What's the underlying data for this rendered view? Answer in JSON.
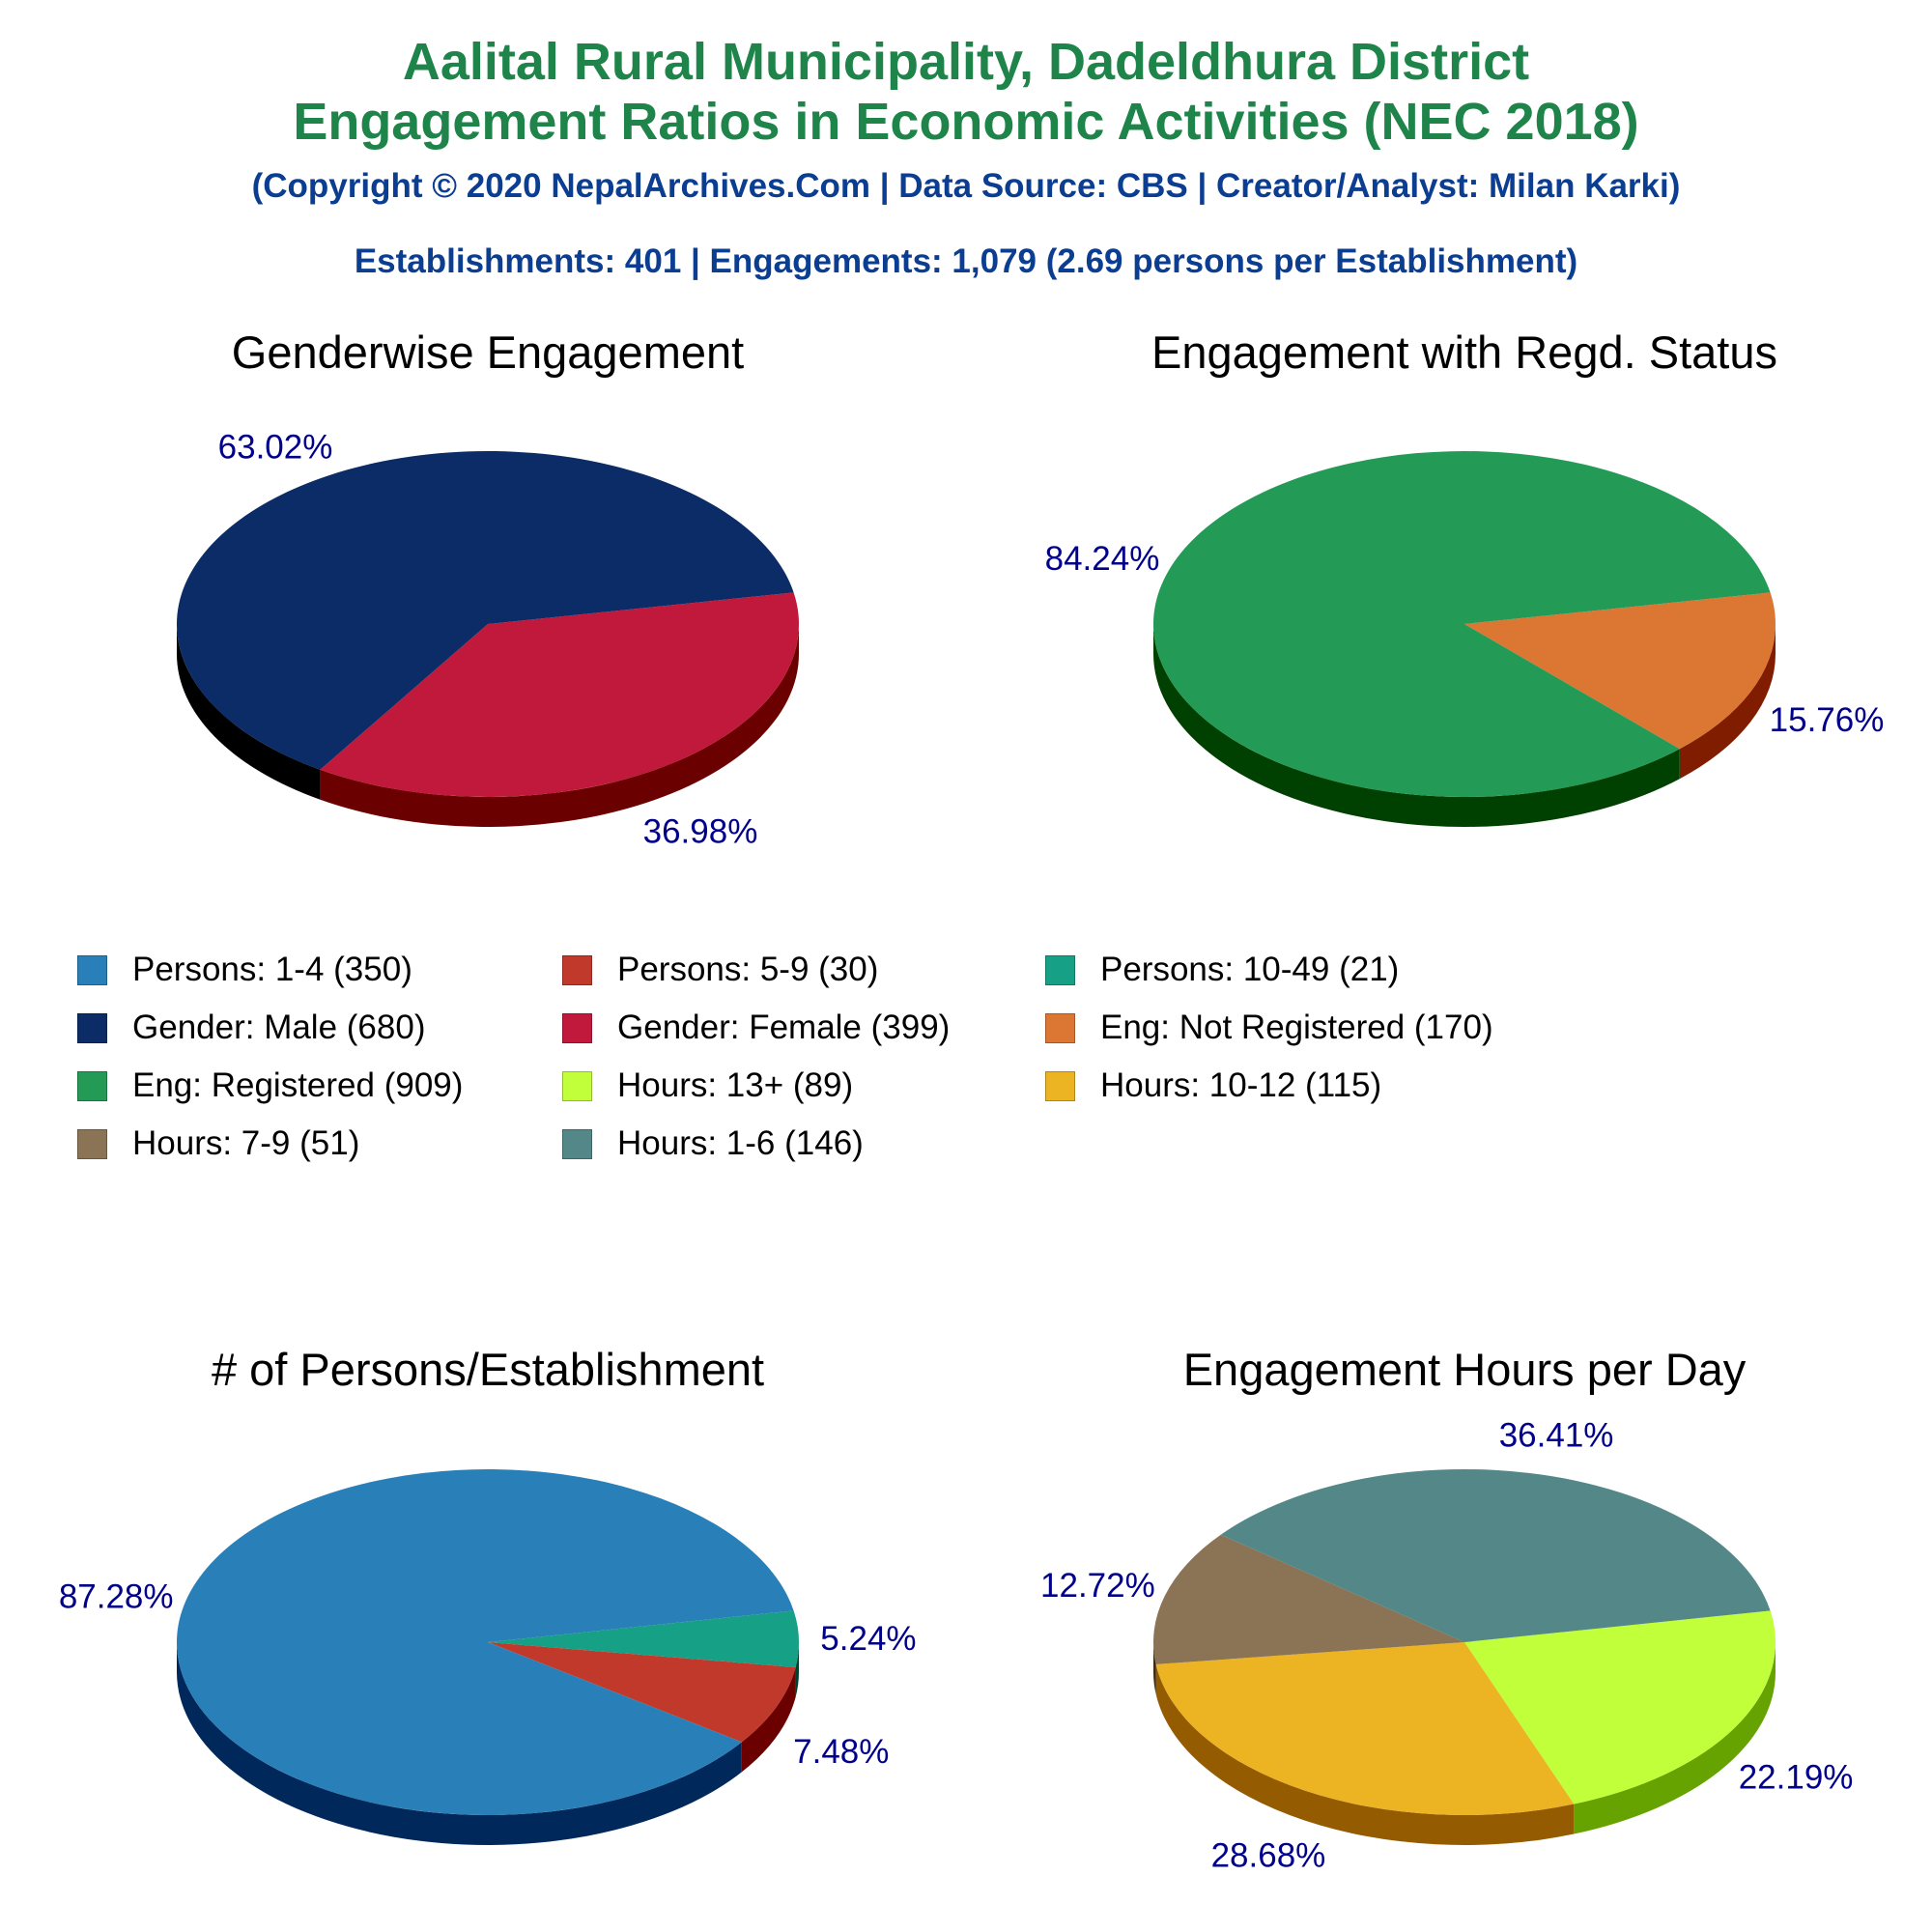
{
  "header": {
    "title_line1": "Aalital Rural Municipality, Dadeldhura District",
    "title_line2": "Engagement Ratios in Economic Activities (NEC 2018)",
    "copyright": "(Copyright © 2020 NepalArchives.Com | Data Source: CBS | Creator/Analyst: Milan Karki)",
    "summary": "Establishments: 401 | Engagements: 1,079 (2.69 persons per Establishment)",
    "title_color": "#1e8449",
    "subtitle_color": "#0b3d91"
  },
  "legend": [
    {
      "label": "Persons: 1-4 (350)",
      "color": "#2980b9"
    },
    {
      "label": "Persons: 5-9 (30)",
      "color": "#c0392b"
    },
    {
      "label": "Persons: 10-49 (21)",
      "color": "#16a085"
    },
    {
      "label": "Gender: Male (680)",
      "color": "#0b2c66"
    },
    {
      "label": "Gender: Female (399)",
      "color": "#c0193b"
    },
    {
      "label": "Eng: Not Registered (170)",
      "color": "#dc7633"
    },
    {
      "label": "Eng: Registered (909)",
      "color": "#239b56"
    },
    {
      "label": "Hours: 13+ (89)",
      "color": "#c0ff3a"
    },
    {
      "label": "Hours: 10-12 (115)",
      "color": "#ecb322"
    },
    {
      "label": "Hours: 7-9 (51)",
      "color": "#8b7355"
    },
    {
      "label": "Hours: 1-6 (146)",
      "color": "#548787"
    }
  ],
  "chart_data": [
    {
      "type": "pie",
      "title": "Genderwise Engagement",
      "label_color": "#00008b",
      "slices": [
        {
          "name": "Gender: Female",
          "value": 399,
          "label": "36.98%",
          "color": "#c0193b",
          "side_color": "#6b0000"
        },
        {
          "name": "Gender: Male",
          "value": 680,
          "label": "63.02%",
          "color": "#0b2c66",
          "side_color": "#000000"
        }
      ]
    },
    {
      "type": "pie",
      "title": "Engagement with Regd. Status",
      "label_color": "#00008b",
      "slices": [
        {
          "name": "Eng: Not Registered",
          "value": 170,
          "label": "15.76%",
          "color": "#dc7633",
          "side_color": "#801d00"
        },
        {
          "name": "Eng: Registered",
          "value": 909,
          "label": "84.24%",
          "color": "#239b56",
          "side_color": "#004000"
        }
      ]
    },
    {
      "type": "pie",
      "title": "# of Persons/Establishment",
      "label_color": "#00008b",
      "slices": [
        {
          "name": "Persons: 10-49",
          "value": 21,
          "label": "5.24%",
          "color": "#16a085",
          "side_color": "#00402f"
        },
        {
          "name": "Persons: 5-9",
          "value": 30,
          "label": "7.48%",
          "color": "#c0392b",
          "side_color": "#6b0000"
        },
        {
          "name": "Persons: 1-4",
          "value": 350,
          "label": "87.28%",
          "color": "#2980b9",
          "side_color": "#00285a"
        }
      ]
    },
    {
      "type": "pie",
      "title": "Engagement Hours per Day",
      "label_color": "#00008b",
      "slices": [
        {
          "name": "Hours: 13+",
          "value": 89,
          "label": "22.19%",
          "color": "#c0ff3a",
          "side_color": "#66a300"
        },
        {
          "name": "Hours: 10-12",
          "value": 115,
          "label": "28.68%",
          "color": "#ecb322",
          "side_color": "#955b00"
        },
        {
          "name": "Hours: 7-9",
          "value": 51,
          "label": "12.72%",
          "color": "#8b7355",
          "side_color": "#3d2a10"
        },
        {
          "name": "Hours: 1-6",
          "value": 146,
          "label": "36.41%",
          "color": "#548787",
          "side_color": "#1d3b3b"
        }
      ]
    }
  ]
}
